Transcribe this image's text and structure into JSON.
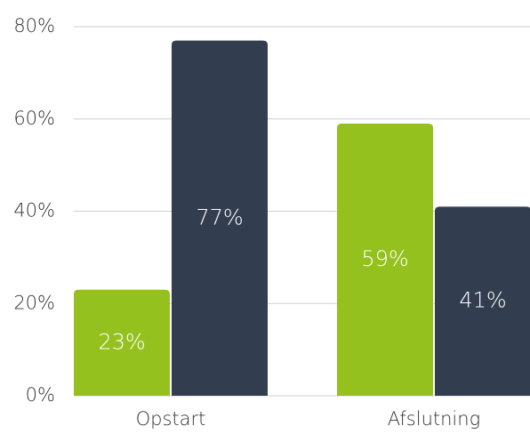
{
  "chart_data": {
    "type": "bar",
    "categories": [
      "Opstart",
      "Afslutning"
    ],
    "series": [
      {
        "color": "#95c11f",
        "values": [
          23,
          59
        ],
        "value_labels": [
          "23%",
          "59%"
        ]
      },
      {
        "color": "#323e4f",
        "values": [
          77,
          41
        ],
        "value_labels": [
          "77%",
          "41%"
        ]
      }
    ],
    "ylim": [
      0,
      80
    ],
    "yticks": [
      {
        "value": 0,
        "label": "0%"
      },
      {
        "value": 20,
        "label": "20%"
      },
      {
        "value": 40,
        "label": "40%"
      },
      {
        "value": 60,
        "label": "60%"
      },
      {
        "value": 80,
        "label": "80%"
      }
    ],
    "grid": true
  }
}
